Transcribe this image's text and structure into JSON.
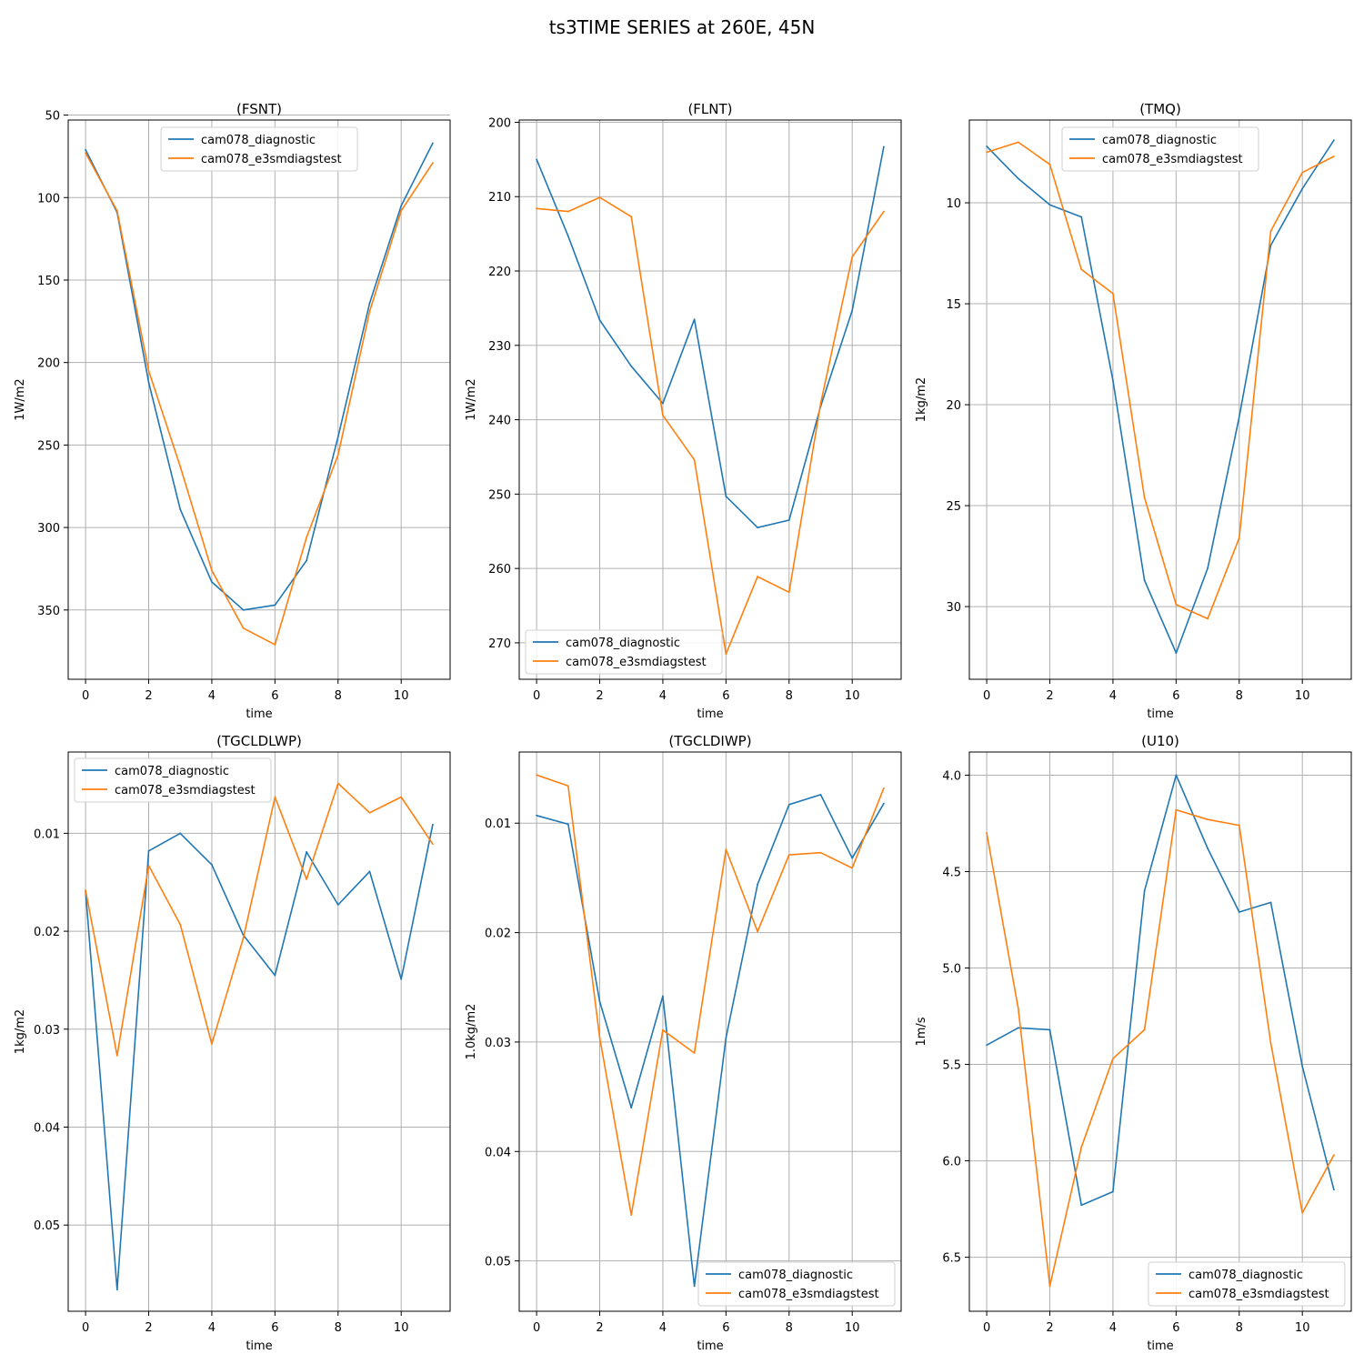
{
  "figure": {
    "title": "ts3TIME SERIES at 260E, 45N"
  },
  "colors": {
    "series_1": "#1f77b4",
    "series_2": "#ff7f0e",
    "grid": "#b0b0b0"
  },
  "chart_data": [
    {
      "type": "line",
      "title": "(FSNT)",
      "xlabel": "time",
      "ylabel": "1W/m2",
      "y_inverted": true,
      "xlim": [
        -0.55,
        11.55
      ],
      "ylim": [
        53,
        392
      ],
      "xticks": [
        0,
        2,
        4,
        6,
        8,
        10
      ],
      "yticks": [
        50,
        100,
        150,
        200,
        250,
        300,
        350
      ],
      "ytick_labels": [
        "50",
        "100",
        "150",
        "200",
        "250",
        "300",
        "350"
      ],
      "grid": true,
      "legend_position": "top-center",
      "x": [
        0,
        1,
        2,
        3,
        4,
        5,
        6,
        7,
        8,
        9,
        10,
        11
      ],
      "series": [
        {
          "name": "cam078_diagnostic",
          "values": [
            71,
            109,
            212,
            289,
            333,
            350,
            347,
            320,
            245,
            164,
            105,
            67
          ]
        },
        {
          "name": "cam078_e3smdiagstest",
          "values": [
            73,
            108,
            205,
            263,
            326,
            361,
            371,
            306,
            256,
            169,
            108,
            79
          ]
        }
      ]
    },
    {
      "type": "line",
      "title": "(FLNT)",
      "xlabel": "time",
      "ylabel": "1W/m2",
      "y_inverted": true,
      "xlim": [
        -0.55,
        11.55
      ],
      "ylim": [
        199.7,
        274.9
      ],
      "xticks": [
        0,
        2,
        4,
        6,
        8,
        10
      ],
      "yticks": [
        200,
        210,
        220,
        230,
        240,
        250,
        260,
        270
      ],
      "ytick_labels": [
        "200",
        "210",
        "220",
        "230",
        "240",
        "250",
        "260",
        "270"
      ],
      "grid": true,
      "legend_position": "bottom-left",
      "x": [
        0,
        1,
        2,
        3,
        4,
        5,
        6,
        7,
        8,
        9,
        10,
        11
      ],
      "series": [
        {
          "name": "cam078_diagnostic",
          "values": [
            205,
            215.3,
            226.6,
            232.8,
            237.8,
            226.5,
            250.3,
            254.5,
            253.5,
            238.2,
            225.3,
            203.3
          ]
        },
        {
          "name": "cam078_e3smdiagstest",
          "values": [
            211.6,
            212,
            210.1,
            212.7,
            239.4,
            245.4,
            271.5,
            261.1,
            263.2,
            237.8,
            218.1,
            212
          ]
        }
      ]
    },
    {
      "type": "line",
      "title": "(TMQ)",
      "xlabel": "time",
      "ylabel": "1kg/m2",
      "y_inverted": true,
      "xlim": [
        -0.55,
        11.55
      ],
      "ylim": [
        5.9,
        33.6
      ],
      "xticks": [
        0,
        2,
        4,
        6,
        8,
        10
      ],
      "yticks": [
        10,
        15,
        20,
        25,
        30
      ],
      "ytick_labels": [
        "10",
        "15",
        "20",
        "25",
        "30"
      ],
      "grid": true,
      "legend_position": "top-center",
      "x": [
        0,
        1,
        2,
        3,
        4,
        5,
        6,
        7,
        8,
        9,
        10,
        11
      ],
      "series": [
        {
          "name": "cam078_diagnostic",
          "values": [
            7.2,
            8.8,
            10.1,
            10.7,
            18.8,
            28.7,
            32.3,
            28.1,
            20.6,
            12.1,
            9.3,
            6.9
          ]
        },
        {
          "name": "cam078_e3smdiagstest",
          "values": [
            7.5,
            7,
            8.1,
            13.3,
            14.5,
            24.6,
            29.9,
            30.6,
            26.6,
            11.4,
            8.5,
            7.7
          ]
        }
      ]
    },
    {
      "type": "line",
      "title": "(TGCLDLWP)",
      "xlabel": "time",
      "ylabel": "1kg/m2",
      "y_inverted": true,
      "xlim": [
        -0.55,
        11.55
      ],
      "ylim": [
        0.0017,
        0.0588
      ],
      "xticks": [
        0,
        2,
        4,
        6,
        8,
        10
      ],
      "yticks": [
        0.01,
        0.02,
        0.03,
        0.04,
        0.05
      ],
      "ytick_labels": [
        "0.01",
        "0.02",
        "0.03",
        "0.04",
        "0.05"
      ],
      "grid": true,
      "legend_position": "top-left",
      "x": [
        0,
        1,
        2,
        3,
        4,
        5,
        6,
        7,
        8,
        9,
        10,
        11
      ],
      "series": [
        {
          "name": "cam078_diagnostic",
          "values": [
            0.0159,
            0.0566,
            0.0118,
            0.01,
            0.0132,
            0.0204,
            0.0245,
            0.0119,
            0.0173,
            0.0139,
            0.0249,
            0.0091
          ]
        },
        {
          "name": "cam078_e3smdiagstest",
          "values": [
            0.0158,
            0.0327,
            0.0133,
            0.0193,
            0.0315,
            0.0207,
            0.0063,
            0.0147,
            0.0049,
            0.0079,
            0.0063,
            0.0111
          ]
        }
      ]
    },
    {
      "type": "line",
      "title": "(TGCLDIWP)",
      "xlabel": "time",
      "ylabel": "1.0kg/m2",
      "y_inverted": true,
      "xlim": [
        -0.55,
        11.55
      ],
      "ylim": [
        0.0035,
        0.0546
      ],
      "xticks": [
        0,
        2,
        4,
        6,
        8,
        10
      ],
      "yticks": [
        0.01,
        0.02,
        0.03,
        0.04,
        0.05
      ],
      "ytick_labels": [
        "0.01",
        "0.02",
        "0.03",
        "0.04",
        "0.05"
      ],
      "grid": true,
      "legend_position": "bottom-right",
      "x": [
        0,
        1,
        2,
        3,
        4,
        5,
        6,
        7,
        8,
        9,
        10,
        11
      ],
      "series": [
        {
          "name": "cam078_diagnostic",
          "values": [
            0.0093,
            0.0101,
            0.0263,
            0.036,
            0.0258,
            0.0523,
            0.0296,
            0.0156,
            0.0083,
            0.0074,
            0.0132,
            0.0082
          ]
        },
        {
          "name": "cam078_e3smdiagstest",
          "values": [
            0.0056,
            0.0066,
            0.0296,
            0.0458,
            0.0289,
            0.031,
            0.0124,
            0.0199,
            0.0129,
            0.0127,
            0.0141,
            0.0068
          ]
        }
      ]
    },
    {
      "type": "line",
      "title": "(U10)",
      "xlabel": "time",
      "ylabel": "1m/s",
      "y_inverted": true,
      "xlim": [
        -0.55,
        11.55
      ],
      "ylim": [
        3.88,
        6.78
      ],
      "xticks": [
        0,
        2,
        4,
        6,
        8,
        10
      ],
      "yticks": [
        4.0,
        4.5,
        5.0,
        5.5,
        6.0,
        6.5
      ],
      "ytick_labels": [
        "4.0",
        "4.5",
        "5.0",
        "5.5",
        "6.0",
        "6.5"
      ],
      "grid": true,
      "legend_position": "bottom-right",
      "x": [
        0,
        1,
        2,
        3,
        4,
        5,
        6,
        7,
        8,
        9,
        10,
        11
      ],
      "series": [
        {
          "name": "cam078_diagnostic",
          "values": [
            5.4,
            5.31,
            5.32,
            6.23,
            6.16,
            4.6,
            4.0,
            4.38,
            4.71,
            4.66,
            5.51,
            6.15
          ]
        },
        {
          "name": "cam078_e3smdiagstest",
          "values": [
            4.3,
            5.21,
            6.65,
            5.93,
            5.47,
            5.32,
            4.18,
            4.23,
            4.26,
            5.39,
            6.27,
            5.97
          ]
        }
      ]
    }
  ]
}
